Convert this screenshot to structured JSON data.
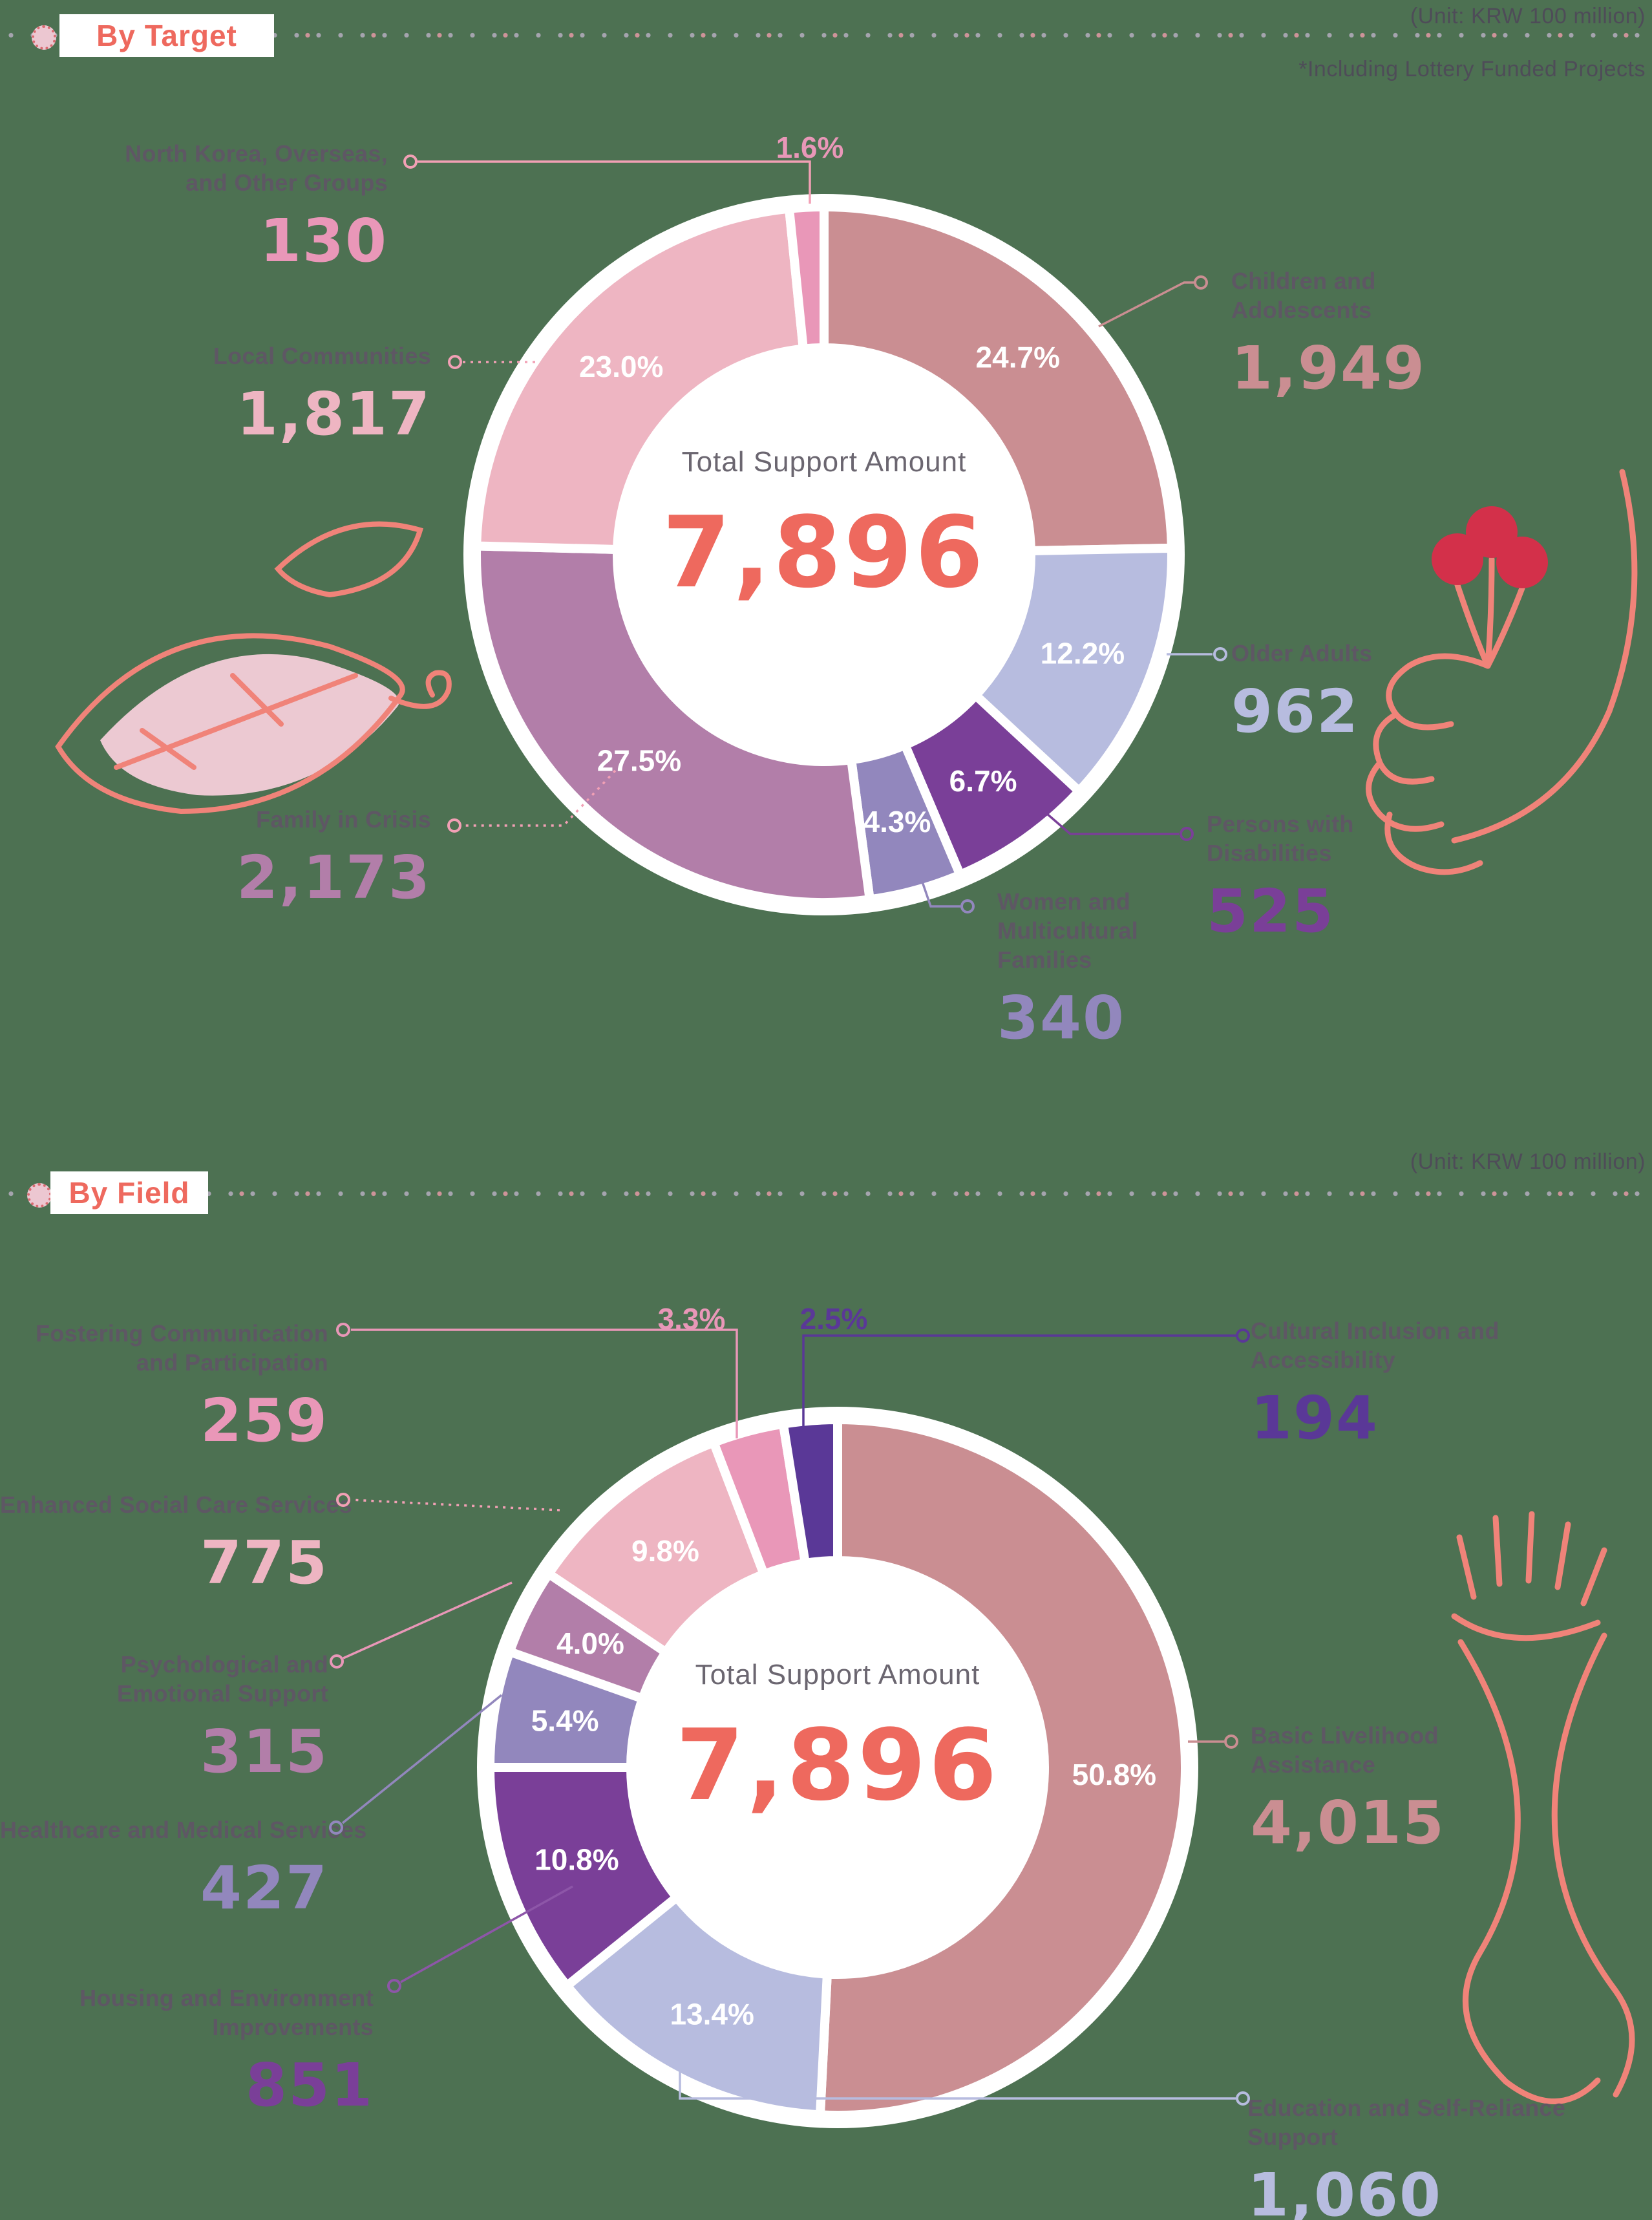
{
  "page": {
    "footnote": "*Including Lottery Funded Projects",
    "background_color": "#4d7152",
    "accent_color": "#ee695e",
    "label_color": "#5e5764"
  },
  "chart_data": [
    {
      "type": "donut",
      "title": "By Target",
      "unit_label": "(Unit: KRW 100 million)",
      "center_label": "Total Support Amount",
      "total": "7,896",
      "legend_position": "around",
      "segments": [
        {
          "label": "Children and Adolescents",
          "value": "1,949",
          "pct": 24.7,
          "color": "#ca8e92"
        },
        {
          "label": "Older Adults",
          "value": "962",
          "pct": 12.2,
          "color": "#b7bcdf"
        },
        {
          "label": "Persons with Disabilities",
          "value": "525",
          "pct": 6.7,
          "color": "#7a3f98"
        },
        {
          "label": "Women and Multicultural Families",
          "value": "340",
          "pct": 4.3,
          "color": "#9287bd"
        },
        {
          "label": "Family in Crisis",
          "value": "2,173",
          "pct": 27.5,
          "color": "#b27ea9"
        },
        {
          "label": "Local Communities",
          "value": "1,817",
          "pct": 23.0,
          "color": "#eeb5c2"
        },
        {
          "label": "North Korea, Overseas, and Other Groups",
          "value": "130",
          "pct": 1.6,
          "color": "#e997b8",
          "pct_outside": true
        }
      ]
    },
    {
      "type": "donut",
      "title": "By Field",
      "unit_label": "(Unit: KRW 100 million)",
      "center_label": "Total Support Amount",
      "total": "7,896",
      "legend_position": "around",
      "segments": [
        {
          "label": "Basic Livelihood Assistance",
          "value": "4,015",
          "pct": 50.8,
          "color": "#ca8e92"
        },
        {
          "label": "Education and Self-Reliance Support",
          "value": "1,060",
          "pct": 13.4,
          "color": "#b7bcdf"
        },
        {
          "label": "Housing and Environment Improvements",
          "value": "851",
          "pct": 10.8,
          "color": "#7a3f98"
        },
        {
          "label": "Healthcare and Medical Services",
          "value": "427",
          "pct": 5.4,
          "color": "#9287bd"
        },
        {
          "label": "Psychological and Emotional Support",
          "value": "315",
          "pct": 4.0,
          "color": "#b27ea9"
        },
        {
          "label": "Enhanced Social Care Services",
          "value": "775",
          "pct": 9.8,
          "color": "#eeb5c2"
        },
        {
          "label": "Fostering Communication and Participation",
          "value": "259",
          "pct": 3.3,
          "color": "#e997b8",
          "pct_outside": true
        },
        {
          "label": "Cultural Inclusion and Accessibility",
          "value": "194",
          "pct": 2.5,
          "color": "#5a3897",
          "pct_outside": true
        }
      ]
    }
  ]
}
